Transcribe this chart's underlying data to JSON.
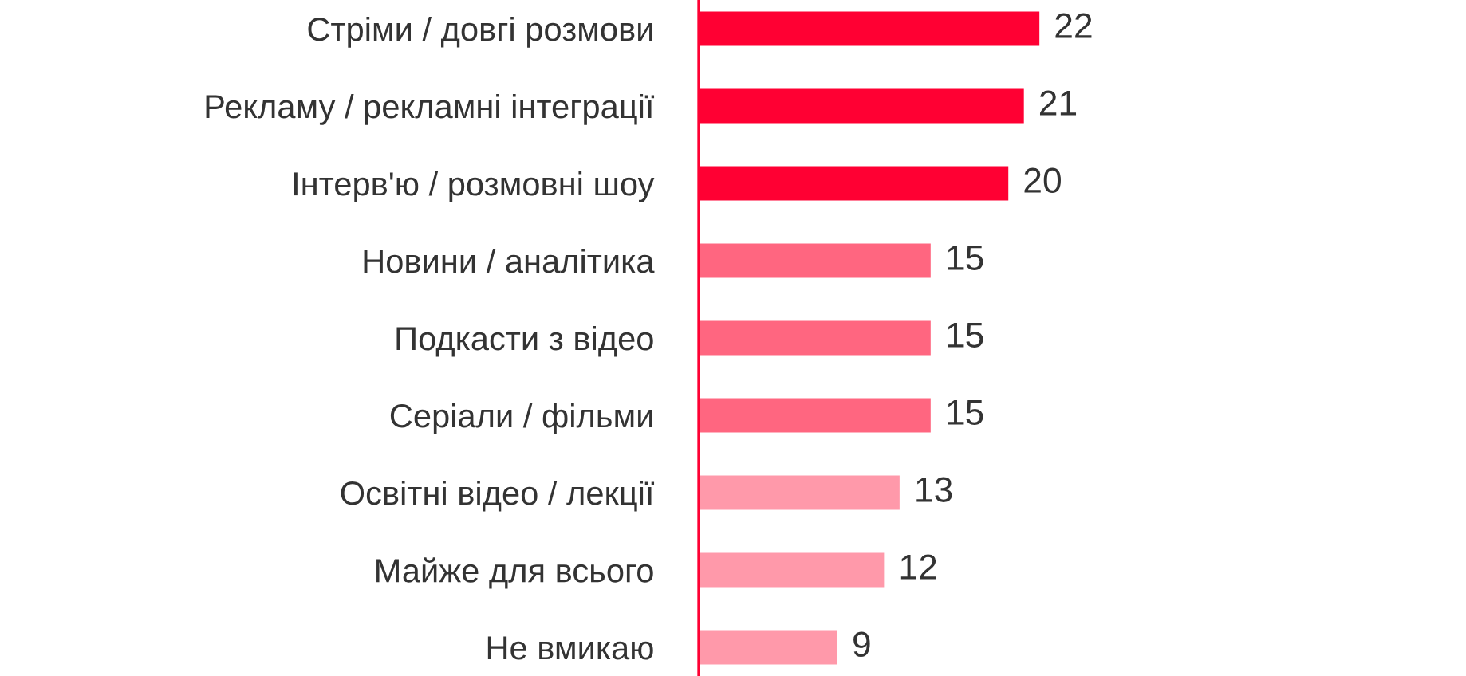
{
  "chart_data": {
    "type": "bar",
    "orientation": "horizontal",
    "categories": [
      "Стріми / довгі розмови",
      "Рекламу / рекламні інтеграції",
      "Інтерв'ю / розмовні шоу",
      "Новини / аналітика",
      "Подкасти з відео",
      "Серіали / фільми",
      "Освітні відео / лекції",
      "Майже для всього",
      "Не вмикаю"
    ],
    "values": [
      22,
      21,
      20,
      15,
      15,
      15,
      13,
      12,
      9
    ],
    "colors": [
      "#ff0033",
      "#ff0033",
      "#ff0033",
      "#ff6680",
      "#ff6680",
      "#ff6680",
      "#ff99aa",
      "#ff99aa",
      "#ff99aa"
    ],
    "data_labels": true,
    "grid": false,
    "legend": false
  }
}
